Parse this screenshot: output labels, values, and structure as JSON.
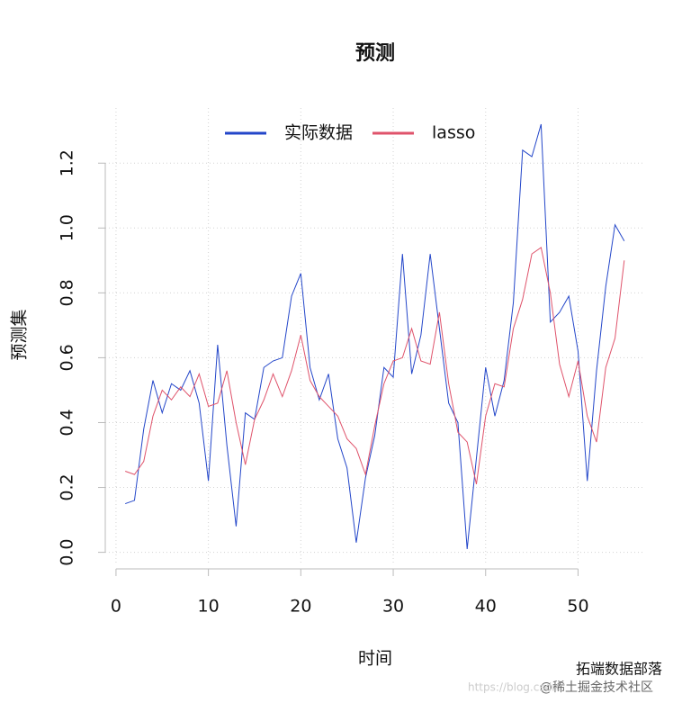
{
  "chart_data": {
    "type": "line",
    "title": "预测",
    "xlabel": "时间",
    "ylabel": "预测集",
    "x": [
      1,
      2,
      3,
      4,
      5,
      6,
      7,
      8,
      9,
      10,
      11,
      12,
      13,
      14,
      15,
      16,
      17,
      18,
      19,
      20,
      21,
      22,
      23,
      24,
      25,
      26,
      27,
      28,
      29,
      30,
      31,
      32,
      33,
      34,
      35,
      36,
      37,
      38,
      39,
      40,
      41,
      42,
      43,
      44,
      45,
      46,
      47,
      48,
      49,
      50,
      51,
      52,
      53,
      54,
      55
    ],
    "series": [
      {
        "name": "实际数据",
        "color": "#2346c9",
        "values": [
          0.15,
          0.16,
          0.38,
          0.53,
          0.43,
          0.52,
          0.5,
          0.56,
          0.46,
          0.22,
          0.64,
          0.33,
          0.08,
          0.43,
          0.41,
          0.57,
          0.59,
          0.6,
          0.79,
          0.86,
          0.57,
          0.47,
          0.55,
          0.35,
          0.26,
          0.03,
          0.23,
          0.36,
          0.57,
          0.54,
          0.92,
          0.55,
          0.67,
          0.92,
          0.69,
          0.46,
          0.4,
          0.01,
          0.29,
          0.57,
          0.42,
          0.53,
          0.77,
          1.24,
          1.22,
          1.32,
          0.71,
          0.74,
          0.79,
          0.62,
          0.22,
          0.56,
          0.82,
          1.01,
          0.96
        ]
      },
      {
        "name": "lasso",
        "color": "#df536b",
        "values": [
          0.25,
          0.24,
          0.28,
          0.42,
          0.5,
          0.47,
          0.51,
          0.48,
          0.55,
          0.45,
          0.46,
          0.56,
          0.4,
          0.27,
          0.41,
          0.47,
          0.55,
          0.48,
          0.56,
          0.67,
          0.53,
          0.48,
          0.45,
          0.42,
          0.35,
          0.32,
          0.24,
          0.39,
          0.52,
          0.59,
          0.6,
          0.69,
          0.59,
          0.58,
          0.74,
          0.52,
          0.37,
          0.34,
          0.21,
          0.42,
          0.52,
          0.51,
          0.69,
          0.78,
          0.92,
          0.94,
          0.8,
          0.58,
          0.48,
          0.59,
          0.42,
          0.34,
          0.57,
          0.66,
          0.9
        ]
      }
    ],
    "xlim": [
      -1.16,
      57.16
    ],
    "ylim": [
      -0.04,
      1.37
    ],
    "xticks": [
      0,
      10,
      20,
      30,
      40,
      50
    ],
    "yticks": [
      {
        "value": 0,
        "label": "0.0"
      },
      0.2,
      0.4,
      0.6,
      0.8,
      {
        "value": 1,
        "label": "1.0"
      },
      1.2
    ],
    "grid": true,
    "legend": "top",
    "watermarks": [
      "拓端数据部落",
      "@稀土掘金技术社区",
      "https://blog.csdn"
    ]
  }
}
